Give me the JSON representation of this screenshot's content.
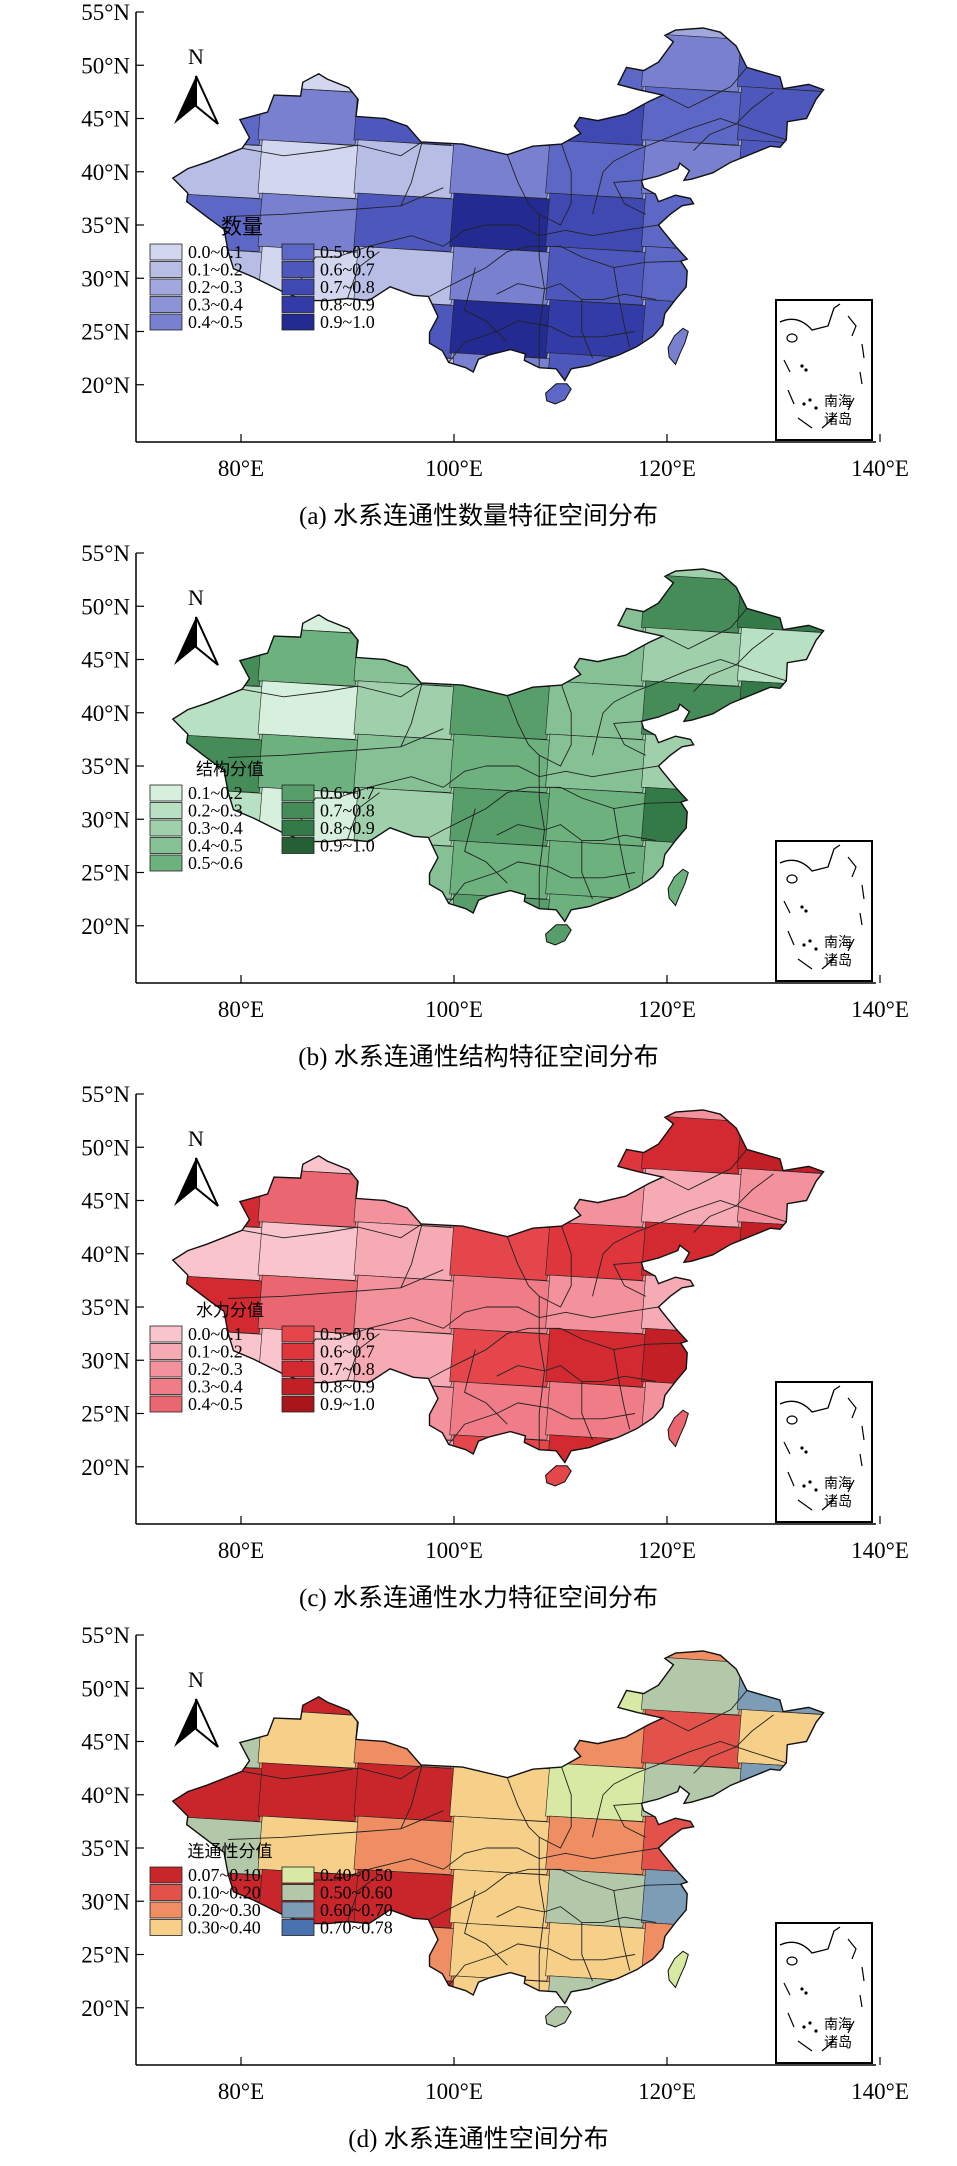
{
  "axes": {
    "lat_ticks": [
      "55°N",
      "50°N",
      "45°N",
      "40°N",
      "35°N",
      "30°N",
      "25°N",
      "20°N"
    ],
    "lon_ticks": [
      "80°E",
      "100°E",
      "120°E",
      "140°E"
    ]
  },
  "north_arrow": "N",
  "inset_label": [
    "南海",
    "诸岛"
  ],
  "panels": [
    {
      "caption": "(a) 水系连通性数量特征空间分布",
      "legend_title": "数量",
      "classes": [
        "0.0~0.1",
        "0.1~0.2",
        "0.2~0.3",
        "0.3~0.4",
        "0.4~0.5",
        "0.5~0.6",
        "0.6~0.7",
        "0.7~0.8",
        "0.8~0.9",
        "0.9~1.0"
      ],
      "colors": [
        "#d3d6ef",
        "#b8bde6",
        "#a2a8de",
        "#8c93d6",
        "#7880cf",
        "#5d67c5",
        "#4e58bc",
        "#4049b2",
        "#333ca6",
        "#232a92"
      ]
    },
    {
      "caption": "(b) 水系连通性结构特征空间分布",
      "legend_title": "结构分值",
      "classes": [
        "0.1~0.2",
        "0.2~0.3",
        "0.3~0.4",
        "0.4~0.5",
        "0.5~0.6",
        "0.6~0.7",
        "0.7~0.8",
        "0.8~0.9",
        "0.9~1.0"
      ],
      "colors": [
        "#d7efdd",
        "#b8e0c2",
        "#9fd0ab",
        "#86c195",
        "#6db17f",
        "#579e6b",
        "#458c59",
        "#347a48",
        "#245f36"
      ]
    },
    {
      "caption": "(c) 水系连通性水力特征空间分布",
      "legend_title": "水力分值",
      "classes": [
        "0.0~0.1",
        "0.1~0.2",
        "0.2~0.3",
        "0.3~0.4",
        "0.4~0.5",
        "0.5~0.6",
        "0.6~0.7",
        "0.7~0.8",
        "0.8~0.9",
        "0.9~1.0"
      ],
      "colors": [
        "#f9c4cc",
        "#f6aab4",
        "#f3919c",
        "#ef7c86",
        "#ea6670",
        "#e5464c",
        "#de363c",
        "#d22a30",
        "#c21f26",
        "#a8161c"
      ]
    },
    {
      "caption": "(d) 水系连通性空间分布",
      "legend_title": "连通性分值",
      "classes": [
        "0.07~0.10",
        "0.10~0.20",
        "0.20~0.30",
        "0.30~0.40",
        "0.40~0.50",
        "0.50~0.60",
        "0.60~0.70",
        "0.70~0.78"
      ],
      "colors": [
        "#c8262b",
        "#e2524b",
        "#ef8d63",
        "#f6d089",
        "#d7e9a2",
        "#b3c7a9",
        "#7d9cb5",
        "#4a72b0"
      ]
    }
  ]
}
